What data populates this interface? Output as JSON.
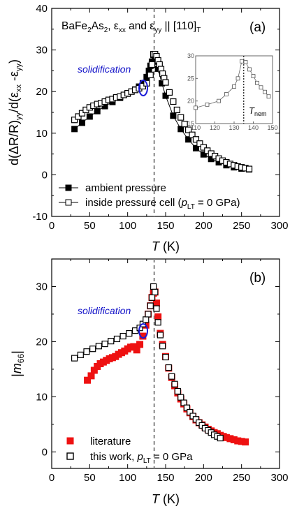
{
  "chart_data": [
    {
      "type": "scatter",
      "panel_label": "(a)",
      "title_parts": {
        "base": "BaFe",
        "sub1": "2",
        "mid": "As",
        "sub2": "2",
        "rest1": ", ε",
        "sub3": "xx",
        "rest2": " and ε",
        "sub4": "yy",
        "rest3": " || [110]",
        "sub5": "T"
      },
      "xlabel": {
        "var": "T",
        "unit": " (K)"
      },
      "ylabel": {
        "p1": "d(ΔR/R)",
        "s1": "yy",
        "p2": "/d(ε",
        "s2": "xx",
        "p3": " -ε",
        "s3": "yy",
        "p4": ")"
      },
      "xlim": [
        0,
        300
      ],
      "ylim": [
        -10,
        40
      ],
      "xticks": [
        "0",
        "50",
        "100",
        "150",
        "200",
        "250",
        "300"
      ],
      "yticks": [
        "-10",
        "0",
        "10",
        "20",
        "30",
        "40"
      ],
      "ytick_values": [
        -10,
        0,
        10,
        20,
        30,
        40
      ],
      "dashed_line_x": 135,
      "annotation": "solidification",
      "series": [
        {
          "name": "ambient pressure",
          "marker": "filled-square",
          "color": "#000000",
          "x": [
            30,
            40,
            50,
            60,
            70,
            80,
            90,
            100,
            110,
            115,
            120,
            125,
            128,
            130,
            132,
            134,
            136,
            138,
            140,
            145,
            150,
            160,
            170,
            180,
            190,
            200,
            210,
            220,
            230,
            240,
            250,
            260
          ],
          "y": [
            11,
            12.5,
            14,
            15.3,
            16.5,
            17.5,
            18.5,
            19.5,
            20.5,
            21.2,
            22,
            23.5,
            25,
            26.2,
            27.2,
            28.8,
            28.5,
            27.2,
            25.5,
            22,
            19,
            14.2,
            11,
            8.5,
            6.4,
            4.9,
            3.8,
            3,
            2.3,
            1.8,
            1.5,
            1.3
          ]
        },
        {
          "name": "inside pressure cell (p_LT = 0 GPa)",
          "legend_parts": {
            "pre": "inside pressure cell (",
            "var": "p",
            "sub": "LT",
            "post": " = 0 GPa)"
          },
          "marker": "open-square",
          "color": "#000000",
          "x": [
            30,
            35,
            40,
            45,
            50,
            55,
            60,
            65,
            70,
            75,
            80,
            85,
            90,
            95,
            100,
            105,
            110,
            115,
            120,
            125,
            130,
            132,
            134,
            136,
            138,
            140,
            142,
            144,
            146,
            148,
            150,
            155,
            160,
            165,
            170,
            175,
            180,
            185,
            190,
            195,
            200,
            205,
            210,
            215,
            220,
            225,
            230,
            235,
            240,
            245,
            250,
            255,
            260
          ],
          "y": [
            13.2,
            14,
            14.8,
            15.6,
            16.2,
            16.6,
            17,
            17.2,
            17.6,
            18,
            18.2,
            18.6,
            18.8,
            19.2,
            19.6,
            20,
            20.4,
            20.8,
            21.3,
            22,
            24,
            26.5,
            29,
            29,
            28.5,
            27.5,
            26.5,
            25.4,
            24.3,
            23.2,
            22.2,
            19.8,
            17.6,
            15.6,
            13.8,
            12.2,
            10.8,
            9.6,
            8.5,
            7.5,
            6.6,
            5.8,
            5.1,
            4.5,
            3.9,
            3.4,
            3,
            2.6,
            2.3,
            2,
            1.8,
            1.6,
            1.4
          ]
        }
      ],
      "inset": {
        "xlim": [
          110,
          150
        ],
        "ylim": [
          15,
          30
        ],
        "xticks": [
          "110",
          "120",
          "130",
          "140",
          "150"
        ],
        "yticks": [
          "15",
          "20",
          "25",
          "30"
        ],
        "ytick_values": [
          15,
          20,
          25,
          30
        ],
        "dashed_line_x": 135,
        "label": {
          "var": "T",
          "sub": "nem"
        },
        "series": {
          "x": [
            110,
            116,
            122,
            126,
            130,
            132,
            134,
            136,
            138,
            140,
            142,
            144,
            146,
            148
          ],
          "y": [
            18.5,
            19.2,
            20,
            21.5,
            23.2,
            25,
            28.8,
            28.6,
            27,
            25.5,
            24,
            23,
            22,
            21
          ]
        }
      }
    },
    {
      "type": "scatter",
      "panel_label": "(b)",
      "xlabel": {
        "var": "T",
        "unit": " (K)"
      },
      "ylabel": {
        "pre": "|",
        "var": "m",
        "sub": "66",
        "post": "|"
      },
      "xlim": [
        0,
        300
      ],
      "ylim": [
        -3,
        35
      ],
      "xticks": [
        "0",
        "50",
        "100",
        "150",
        "200",
        "250",
        "300"
      ],
      "yticks": [
        "0",
        "10",
        "20",
        "30"
      ],
      "ytick_values": [
        0,
        10,
        20,
        30
      ],
      "dashed_line_x": 135,
      "annotation": "solidification",
      "series": [
        {
          "name": "literature",
          "marker": "filled-square",
          "color": "#ee1111",
          "x": [
            47,
            52,
            56,
            60,
            64,
            68,
            72,
            76,
            80,
            84,
            88,
            92,
            96,
            100,
            104,
            108,
            112,
            116,
            120,
            124,
            127,
            130,
            132,
            134,
            136,
            138,
            140,
            143,
            146,
            150,
            154,
            158,
            162,
            166,
            170,
            174,
            178,
            182,
            186,
            190,
            194,
            198,
            202,
            206,
            210,
            214,
            218,
            222,
            226,
            230,
            235,
            240,
            245,
            250,
            255
          ],
          "y": [
            13,
            13.8,
            14.8,
            15.5,
            16,
            16.3,
            16.6,
            16.9,
            17.1,
            17.3,
            17.7,
            18,
            18.3,
            18.7,
            19,
            19.1,
            18.5,
            19.5,
            21,
            23,
            25,
            26.5,
            28,
            28.8,
            29,
            27,
            24.5,
            21.5,
            19.5,
            17.3,
            15.2,
            13.5,
            12,
            10.7,
            9.6,
            8.7,
            7.8,
            7.1,
            6.4,
            5.8,
            5.3,
            4.9,
            4.5,
            4.1,
            3.8,
            3.5,
            3.3,
            3,
            2.8,
            2.6,
            2.4,
            2.2,
            2,
            1.9,
            1.8
          ]
        },
        {
          "name": "this work, p_LT = 0 GPa",
          "legend_parts": {
            "pre": "this work, ",
            "var": "p",
            "sub": "LT",
            "post": " = 0 GPa"
          },
          "marker": "open-square",
          "color": "#000000",
          "x": [
            30,
            38,
            46,
            54,
            62,
            70,
            78,
            86,
            94,
            102,
            110,
            116,
            120,
            124,
            127,
            130,
            132,
            134,
            136,
            138,
            140,
            143,
            146,
            150,
            154,
            158,
            162,
            166,
            170,
            174,
            178,
            182,
            186,
            190,
            194,
            198,
            202,
            206,
            210,
            214,
            218,
            222
          ],
          "y": [
            17,
            17.6,
            18.2,
            18.7,
            19.2,
            19.6,
            20.1,
            20.5,
            21,
            21.5,
            22,
            22.5,
            23.2,
            24,
            25,
            26.5,
            28,
            30,
            29,
            26,
            23.5,
            21.2,
            19.2,
            17.2,
            15.3,
            13.7,
            12.3,
            11,
            9.9,
            8.9,
            8,
            7.2,
            6.5,
            5.9,
            5.3,
            4.8,
            4.3,
            3.9,
            3.5,
            3.1,
            2.8,
            2.5
          ]
        }
      ]
    }
  ]
}
